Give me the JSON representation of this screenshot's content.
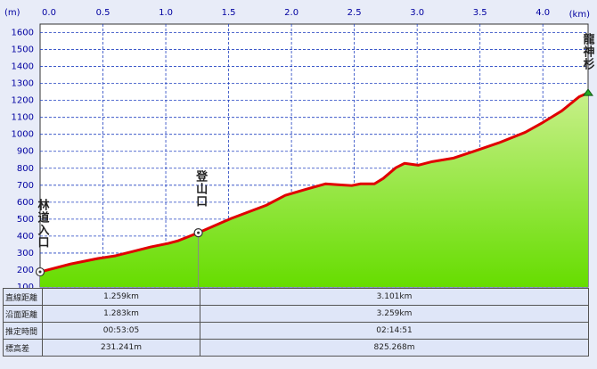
{
  "chart_data": {
    "type": "area",
    "y_label": "(m)",
    "x_label": "(km)",
    "x": [
      0,
      0.245,
      0.46,
      0.6,
      0.74,
      0.88,
      1.02,
      1.1,
      1.259,
      1.52,
      1.8,
      1.95,
      2.12,
      2.27,
      2.37,
      2.48,
      2.55,
      2.66,
      2.73,
      2.83,
      2.9,
      3.01,
      3.12,
      3.29,
      3.44,
      3.65,
      3.86,
      4.0,
      4.15,
      4.29,
      4.36
    ],
    "values": [
      189,
      236,
      268,
      284,
      310,
      336,
      357,
      373,
      420,
      504,
      582,
      640,
      677,
      708,
      703,
      698,
      708,
      708,
      740,
      803,
      829,
      818,
      839,
      860,
      897,
      950,
      1012,
      1070,
      1138,
      1222,
      1245
    ],
    "line_color": "#e00000",
    "fill_top": "#c8f08a",
    "fill_bottom": "#66dd00",
    "xlim": [
      0,
      4.36
    ],
    "ylim": [
      100,
      1650
    ],
    "xticks": [
      {
        "value": 0,
        "label": "0.0"
      },
      0.5,
      {
        "value": 1,
        "label": "1.0"
      },
      1.5,
      {
        "value": 2,
        "label": "2.0"
      },
      2.5,
      {
        "value": 3,
        "label": "3.0"
      },
      3.5,
      {
        "value": 4,
        "label": "4.0"
      }
    ],
    "yticks": [
      100,
      200,
      300,
      400,
      500,
      600,
      700,
      800,
      900,
      1000,
      1100,
      1200,
      1300,
      1400,
      1500,
      1600
    ],
    "grid": true,
    "markers": [
      {
        "label": "林道入口",
        "x": 0,
        "y": 189,
        "symbol": "circle"
      },
      {
        "label": "登山口",
        "x": 1.259,
        "y": 420,
        "symbol": "circle"
      },
      {
        "label": "龍神杉",
        "x": 4.36,
        "y": 1245,
        "symbol": "triangle"
      }
    ]
  },
  "table": {
    "rows": [
      [
        "直線距離",
        "1.259km",
        "3.101km"
      ],
      [
        "沿面距離",
        "1.283km",
        "3.259km"
      ],
      [
        "推定時間",
        "00:53:05",
        "02:14:51"
      ],
      [
        "標高差",
        "231.241m",
        "825.268m"
      ]
    ]
  }
}
